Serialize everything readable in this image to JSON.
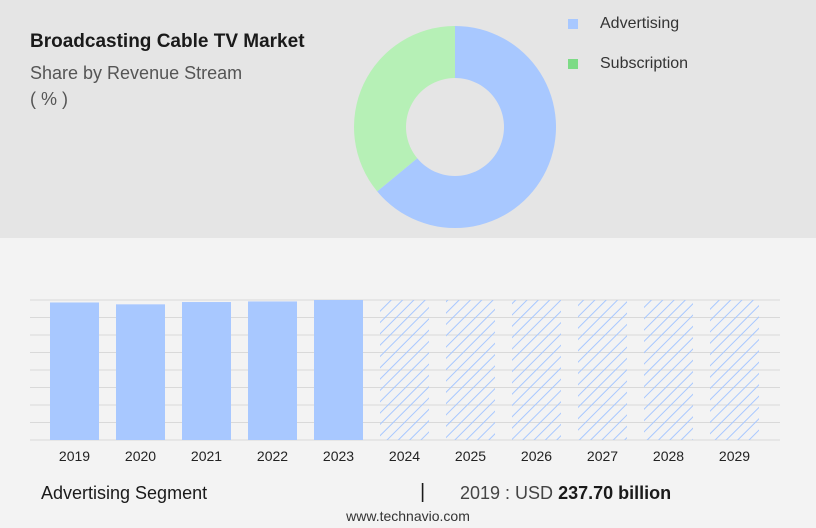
{
  "title": "Broadcasting Cable TV Market",
  "subtitle": "Share by Revenue Stream",
  "unit": "( % )",
  "colors": {
    "advertising": "#a8c8ff",
    "subscription": "#b6f0b6",
    "subscription_legend": "#7ddb86",
    "forecast_hatch": "#a8c8ff",
    "grid": "#d9d9d9"
  },
  "legend": [
    {
      "label": "Advertising",
      "color": "#a8c8ff"
    },
    {
      "label": "Subscription",
      "color": "#7ddb86"
    }
  ],
  "chart_data": [
    {
      "type": "pie",
      "variant": "donut",
      "labels": [
        "Advertising",
        "Subscription"
      ],
      "values": [
        64,
        36
      ],
      "title": "Broadcasting Cable TV Market",
      "subtitle": "Share by Revenue Stream",
      "legend_position": "top-right"
    },
    {
      "type": "bar",
      "categories": [
        "2019",
        "2020",
        "2021",
        "2022",
        "2023",
        "2024",
        "2025",
        "2026",
        "2027",
        "2028",
        "2029"
      ],
      "values": [
        237.7,
        234.5,
        238.5,
        239.5,
        242.0,
        242.0,
        242.0,
        242.0,
        242.0,
        242.0,
        242.0
      ],
      "forecast": [
        false,
        false,
        false,
        false,
        false,
        true,
        true,
        true,
        true,
        true,
        true
      ],
      "series_name": "Advertising Segment",
      "ylim": [
        0,
        242
      ],
      "grid": true,
      "xlabel": "",
      "ylabel": ""
    }
  ],
  "footer": {
    "segment_label": "Advertising Segment",
    "separator": "|",
    "year_prefix": "2019 : USD",
    "value": "237.70 billion"
  },
  "source": "www.technavio.com"
}
